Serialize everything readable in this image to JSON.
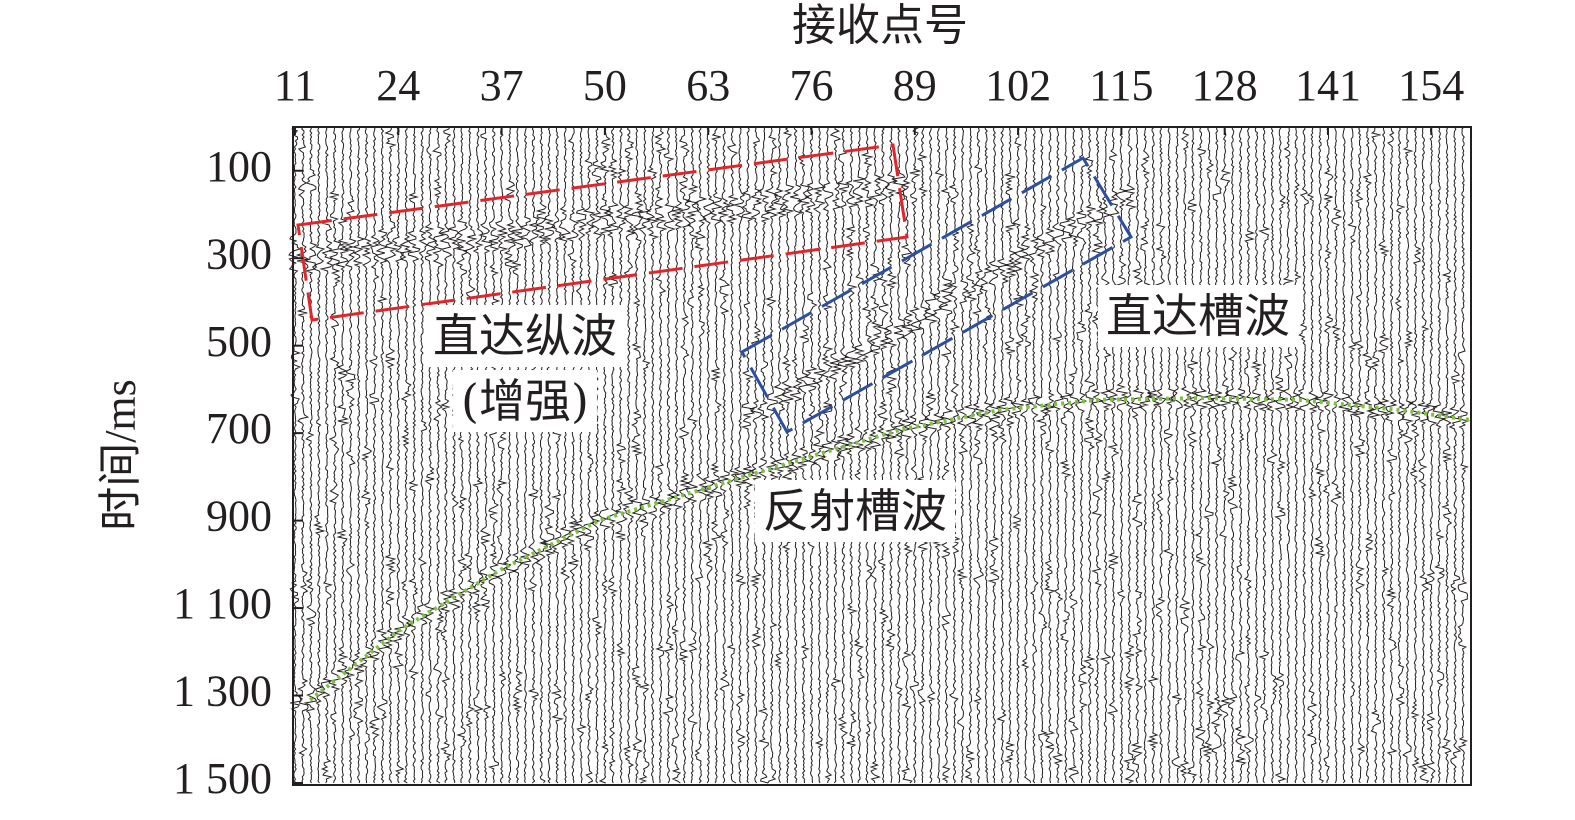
{
  "chart_data": {
    "type": "seismic-record",
    "x_label": "接收点号",
    "y_label": "时间/ms",
    "x_axis_position": "top",
    "y_inverted": true,
    "xlim": [
      11,
      159
    ],
    "xticks": [
      11,
      24,
      37,
      50,
      63,
      76,
      89,
      102,
      115,
      128,
      141,
      154
    ],
    "ylim": [
      0,
      1500
    ],
    "yticks": [
      100,
      300,
      500,
      700,
      900,
      {
        "value": 1100,
        "label": "1 100"
      },
      {
        "value": 1300,
        "label": "1 300"
      },
      {
        "value": 1500,
        "label": "1 500"
      }
    ],
    "series": [
      {
        "color": "#7dc142",
        "x": [
          12.9,
          24.2,
          36.8,
          49.4,
          62,
          74.5,
          87,
          99.7,
          112,
          124.8,
          137.5,
          150,
          159
        ],
        "values": [
          1310,
          1150,
          1013,
          899,
          830,
          761,
          693,
          647,
          624,
          620,
          624,
          647,
          670
        ]
      }
    ],
    "annotations": [
      "直达纵波",
      "(增强)",
      "直达槽波",
      "反射槽波"
    ]
  }
}
